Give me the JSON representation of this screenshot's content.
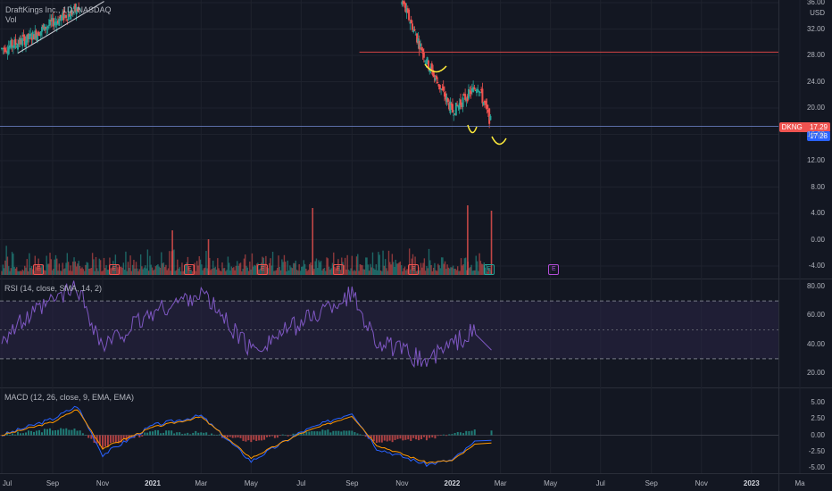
{
  "symbol": {
    "title": "DraftKings Inc., 1D, NASDAQ",
    "volume_label": "Vol",
    "currency": "USD",
    "ticker_tag": "DKNG",
    "last_price": "17.29",
    "prev_price": "17.28"
  },
  "indicators": {
    "rsi_label": "RSI (14, close, SMA, 14, 2)",
    "macd_label": "MACD (12, 26, close, 9, EMA, EMA)"
  },
  "earnings_marker": "E",
  "colors": {
    "background": "#131722",
    "grid": "#1e222d",
    "up": "#26a69a",
    "down": "#ef5350",
    "rsi_line": "#7e57c2",
    "rsi_band": "#2a2545",
    "macd_line": "#2962ff",
    "signal_line": "#ff9800",
    "resistance_line": "#d64545",
    "support_line": "#5b6ea8",
    "annotation": "#ffeb3b",
    "price_tag_down": "#ef5350",
    "price_tag_blue": "#2962ff",
    "upcoming_earnings": "#b24dd6"
  },
  "chart_data": [
    {
      "type": "candlestick",
      "title": "DraftKings Inc., 1D, NASDAQ",
      "x_ticks": [
        "Jul",
        "Sep",
        "Nov",
        "2021",
        "Mar",
        "May",
        "Jul",
        "Sep",
        "Nov",
        "2022",
        "Mar",
        "May",
        "Jul",
        "Sep",
        "Nov",
        "2023",
        "Ma"
      ],
      "y_ticks": [
        "36.00",
        "32.00",
        "28.00",
        "24.00",
        "20.00",
        "16.00",
        "12.00",
        "8.00",
        "4.00",
        "0.00",
        "-4.00"
      ],
      "ylim": [
        -6,
        36.5
      ],
      "log_scale": false,
      "visible_price_path": {
        "x": [
          "2020-07",
          "2020-08",
          "2020-09",
          "2020-10",
          "2021-11",
          "2021-12",
          "2022-01",
          "2022-02",
          "2022-02-18"
        ],
        "close": [
          29,
          30.5,
          33,
          35,
          36,
          27,
          19.5,
          23.5,
          17.29
        ]
      },
      "horizontal_lines": [
        {
          "name": "resistance",
          "value": 28.5
        },
        {
          "name": "support",
          "value": 17.29
        }
      ],
      "trendline": {
        "from": {
          "x": "2020-07",
          "y": 30.5
        },
        "to": {
          "x": "2020-10",
          "y": 36.2
        }
      },
      "earnings_dates": [
        "2020-08",
        "2020-11",
        "2021-02",
        "2021-05",
        "2021-08",
        "2021-11",
        "2022-02"
      ],
      "upcoming_earnings": "2022-05"
    },
    {
      "type": "line",
      "title": "RSI (14, close, SMA, 14, 2)",
      "y_ticks": [
        "80.00",
        "60.00",
        "40.00",
        "20.00"
      ],
      "ylim": [
        12,
        84
      ],
      "bands": [
        70,
        30
      ],
      "x": [
        "2020-07",
        "2020-09",
        "2020-10",
        "2020-11",
        "2021-01",
        "2021-03",
        "2021-05",
        "2021-07",
        "2021-09",
        "2021-10",
        "2021-12",
        "2022-01",
        "2022-02"
      ],
      "values": [
        45,
        70,
        80,
        38,
        62,
        76,
        36,
        55,
        75,
        42,
        28,
        40,
        50
      ]
    },
    {
      "type": "line",
      "title": "MACD (12, 26, close, 9, EMA, EMA)",
      "y_ticks": [
        "5.00",
        "2.50",
        "0.00",
        "-2.50",
        "-5.00"
      ],
      "ylim": [
        -6,
        6
      ],
      "series": [
        {
          "x": [
            "2020-07",
            "2020-09",
            "2020-10",
            "2020-11",
            "2021-01",
            "2021-03",
            "2021-05",
            "2021-07",
            "2021-09",
            "2021-10",
            "2021-12",
            "2022-01",
            "2022-02"
          ],
          "values": [
            0,
            2.5,
            4.5,
            -3.0,
            1.5,
            3.0,
            -4.0,
            0.5,
            3.5,
            -2.0,
            -4.5,
            -3.8,
            -0.8
          ]
        },
        {
          "x": [
            "2020-07",
            "2020-09",
            "2020-10",
            "2020-11",
            "2021-01",
            "2021-03",
            "2021-05",
            "2021-07",
            "2021-09",
            "2021-10",
            "2021-12",
            "2022-01",
            "2022-02"
          ],
          "values": [
            0,
            2.0,
            4.0,
            -2.0,
            1.2,
            2.8,
            -3.5,
            0.3,
            3.0,
            -1.5,
            -4.2,
            -3.9,
            -1.2
          ]
        }
      ]
    }
  ]
}
